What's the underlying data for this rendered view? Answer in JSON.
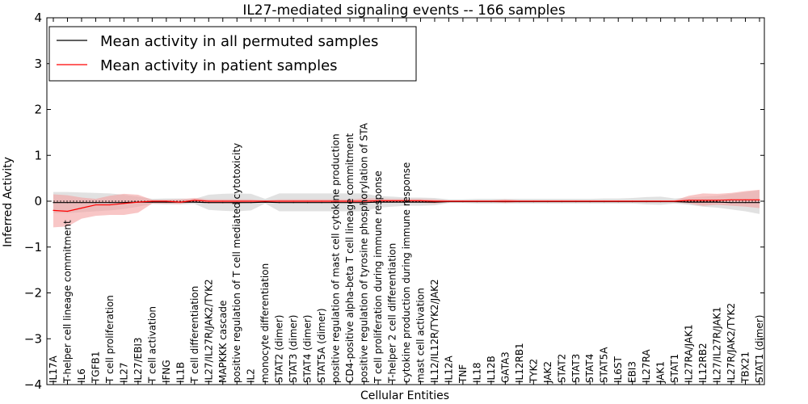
{
  "chart_data": {
    "type": "line",
    "title": "IL27-mediated signaling events -- 166 samples",
    "xlabel": "Cellular Entities",
    "ylabel": "Inferred Activity",
    "ylim": [
      -4,
      4
    ],
    "yticks": [
      -4,
      -3,
      -2,
      -1,
      0,
      1,
      2,
      3,
      4
    ],
    "legend_position": "top-left",
    "categories": [
      "IL17A",
      "T-helper cell lineage commitment",
      "IL6",
      "TGFB1",
      "T cell proliferation",
      "IL27",
      "IL27/EBI3",
      "T cell activation",
      "IFNG",
      "IL1B",
      "T cell differentiation",
      "IL27/IL27R/JAK2/TYK2",
      "MAPKKK cascade",
      "positive regulation of T cell mediated cytotoxicity",
      "IL2",
      "monocyte differentiation",
      "STAT2 (dimer)",
      "STAT3 (dimer)",
      "STAT4 (dimer)",
      "STAT5A (dimer)",
      "positive regulation of mast cell cytokine production",
      "CD4-positive alpha-beta T cell lineage commitment",
      "positive regulation of tyrosine phosphorylation of STA",
      "T cell proliferation during immune response",
      "T-helper 2 cell differentiation",
      "cytokine production during immune response",
      "mast cell activation",
      "IL12/IL12R/TYK2/JAK2",
      "IL12A",
      "TNF",
      "IL18",
      "IL12B",
      "GATA3",
      "IL12RB1",
      "TYK2",
      "JAK2",
      "STAT2",
      "STAT3",
      "STAT4",
      "STAT5A",
      "IL6ST",
      "EBI3",
      "IL27RA",
      "JAK1",
      "STAT1",
      "IL27RA/JAK1",
      "IL12RB2",
      "IL27/IL27R/JAK1",
      "IL27R/JAK2/TYK2",
      "TBX21",
      "STAT1 (dimer)"
    ],
    "series": [
      {
        "name": "Mean activity in all permuted samples",
        "color": "#000000",
        "band_color": "#c8c8c8",
        "values": [
          -0.03,
          -0.03,
          -0.03,
          -0.03,
          -0.03,
          -0.03,
          -0.02,
          -0.02,
          -0.02,
          -0.02,
          -0.02,
          -0.03,
          -0.03,
          -0.03,
          -0.03,
          -0.02,
          -0.03,
          -0.03,
          -0.03,
          -0.03,
          -0.03,
          -0.03,
          -0.03,
          -0.02,
          -0.02,
          -0.02,
          -0.02,
          -0.02,
          -0.01,
          -0.01,
          -0.01,
          -0.01,
          -0.01,
          -0.01,
          -0.01,
          -0.01,
          -0.01,
          -0.01,
          -0.01,
          -0.01,
          -0.01,
          -0.01,
          -0.01,
          -0.01,
          -0.01,
          -0.02,
          -0.02,
          -0.02,
          -0.03,
          -0.03,
          -0.03
        ],
        "lower": [
          -0.26,
          -0.26,
          -0.24,
          -0.22,
          -0.2,
          -0.17,
          -0.12,
          -0.06,
          -0.07,
          -0.07,
          -0.06,
          -0.19,
          -0.21,
          -0.22,
          -0.2,
          -0.05,
          -0.22,
          -0.22,
          -0.22,
          -0.22,
          -0.22,
          -0.22,
          -0.22,
          -0.14,
          -0.12,
          -0.1,
          -0.1,
          -0.09,
          -0.04,
          -0.04,
          -0.05,
          -0.05,
          -0.05,
          -0.05,
          -0.05,
          -0.05,
          -0.05,
          -0.05,
          -0.05,
          -0.05,
          -0.05,
          -0.05,
          -0.07,
          -0.08,
          -0.05,
          -0.08,
          -0.12,
          -0.14,
          -0.18,
          -0.22,
          -0.28
        ],
        "upper": [
          0.2,
          0.2,
          0.19,
          0.18,
          0.17,
          0.14,
          0.1,
          0.05,
          0.06,
          0.06,
          0.05,
          0.14,
          0.16,
          0.17,
          0.16,
          0.05,
          0.17,
          0.17,
          0.17,
          0.17,
          0.17,
          0.17,
          0.17,
          0.11,
          0.1,
          0.08,
          0.08,
          0.07,
          0.04,
          0.04,
          0.05,
          0.05,
          0.05,
          0.05,
          0.05,
          0.05,
          0.05,
          0.05,
          0.05,
          0.06,
          0.06,
          0.07,
          0.09,
          0.1,
          0.06,
          0.08,
          0.1,
          0.12,
          0.16,
          0.2,
          0.24
        ]
      },
      {
        "name": "Mean activity in patient samples",
        "color": "#ff0000",
        "band_color": "#f4a0a0",
        "values": [
          -0.2,
          -0.22,
          -0.15,
          -0.08,
          -0.08,
          -0.05,
          -0.02,
          0.0,
          0.0,
          -0.02,
          0.02,
          0.0,
          0.0,
          0.0,
          0.0,
          0.0,
          0.0,
          0.0,
          0.0,
          0.0,
          0.0,
          0.0,
          0.0,
          0.01,
          0.01,
          0.01,
          0.01,
          0.0,
          0.0,
          0.0,
          0.0,
          0.0,
          0.0,
          0.0,
          0.0,
          0.0,
          0.0,
          0.0,
          0.0,
          0.0,
          0.0,
          0.0,
          0.0,
          0.0,
          0.0,
          0.02,
          0.02,
          0.02,
          0.03,
          0.03,
          0.03
        ],
        "lower": [
          -0.57,
          -0.55,
          -0.38,
          -0.32,
          -0.3,
          -0.3,
          -0.25,
          -0.05,
          -0.05,
          -0.06,
          -0.02,
          -0.05,
          -0.05,
          -0.05,
          -0.04,
          -0.02,
          -0.04,
          -0.04,
          -0.04,
          -0.04,
          -0.04,
          -0.04,
          -0.04,
          -0.03,
          -0.03,
          -0.03,
          -0.03,
          -0.05,
          -0.02,
          -0.02,
          -0.02,
          -0.02,
          -0.04,
          -0.02,
          -0.02,
          -0.02,
          -0.02,
          -0.02,
          -0.02,
          -0.02,
          -0.02,
          -0.02,
          -0.02,
          -0.02,
          -0.02,
          -0.05,
          -0.1,
          -0.08,
          -0.1,
          -0.12,
          -0.15
        ],
        "upper": [
          0.15,
          0.13,
          0.08,
          0.05,
          0.12,
          0.16,
          0.14,
          0.03,
          0.03,
          0.04,
          0.07,
          0.04,
          0.04,
          0.04,
          0.04,
          0.02,
          0.04,
          0.04,
          0.04,
          0.04,
          0.04,
          0.04,
          0.06,
          0.06,
          0.05,
          0.05,
          0.05,
          0.04,
          0.02,
          0.02,
          0.02,
          0.02,
          0.04,
          0.02,
          0.02,
          0.02,
          0.02,
          0.02,
          0.02,
          0.02,
          0.02,
          0.02,
          0.02,
          0.02,
          0.02,
          0.12,
          0.17,
          0.16,
          0.18,
          0.22,
          0.25
        ]
      }
    ]
  }
}
